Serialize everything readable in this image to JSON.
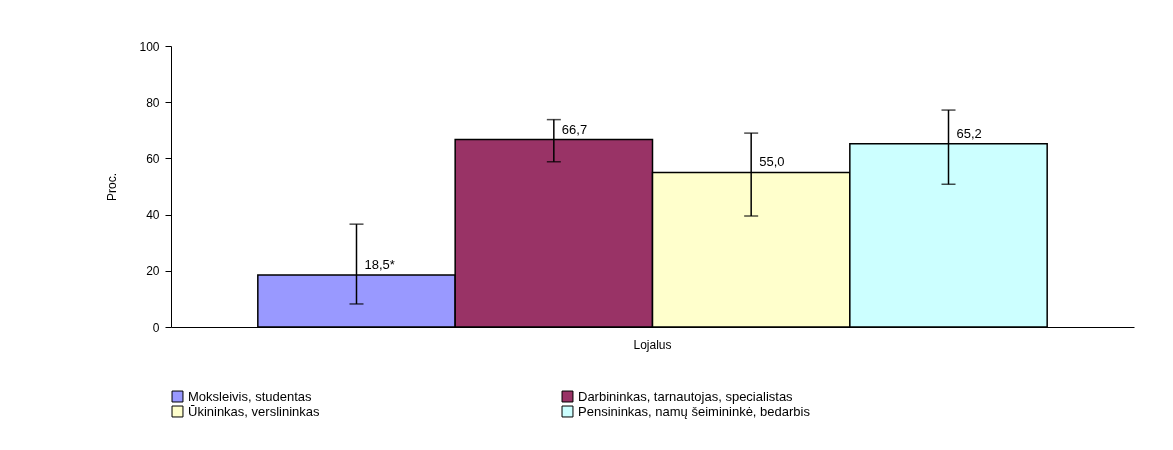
{
  "chart_data": {
    "type": "bar",
    "ylabel": "Proc.",
    "categories": [
      "Lojalus"
    ],
    "series": [
      {
        "name": "Moksleivis, studentas",
        "color": "#9999ff",
        "values": [
          18.5
        ],
        "errors": [
          [
            8.2,
            36.6
          ]
        ],
        "value_labels": [
          "18,5*"
        ]
      },
      {
        "name": "Darbininkas, tarnautojas, specialistas",
        "color": "#993366",
        "values": [
          66.7
        ],
        "errors": [
          [
            58.8,
            73.8
          ]
        ],
        "value_labels": [
          "66,7"
        ]
      },
      {
        "name": "Ūkininkas, verslininkas",
        "color": "#ffffcc",
        "values": [
          55.0
        ],
        "errors": [
          [
            39.5,
            69.0
          ]
        ],
        "value_labels": [
          "55,0"
        ]
      },
      {
        "name": "Pensininkas, namų šeimininkė, bedarbis",
        "color": "#ccffff",
        "values": [
          65.2
        ],
        "errors": [
          [
            50.8,
            77.2
          ]
        ],
        "value_labels": [
          "65,2"
        ]
      }
    ],
    "ylim": [
      0,
      100
    ],
    "yticks": [
      0,
      20,
      40,
      60,
      80,
      100
    ],
    "grid": false,
    "legend": "bottom"
  }
}
